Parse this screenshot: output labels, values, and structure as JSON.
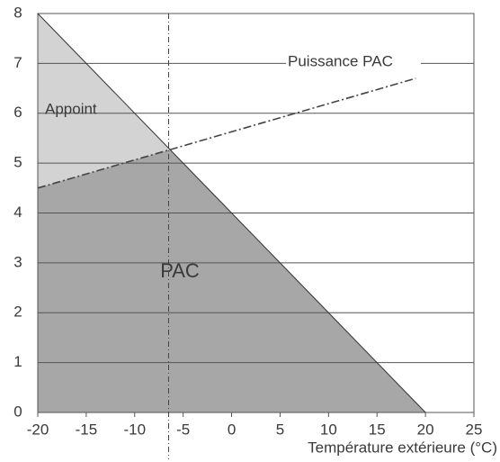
{
  "chart_data": {
    "type": "area",
    "xlabel": "Température extérieure (°C)",
    "series": [
      {
        "x": [
          -20,
          20
        ],
        "values": [
          8,
          0
        ],
        "color": "#333333"
      },
      {
        "name": "Puissance PAC",
        "x": [
          -20,
          19
        ],
        "values": [
          4.5,
          6.7
        ],
        "color": "#444444",
        "dash": "dashdot"
      }
    ],
    "vlines": [
      -6.5
    ],
    "annotations": [
      "Appoint",
      "PAC"
    ],
    "fill_colors": [
      "#d3d3d3",
      "#a7a7a7"
    ],
    "xlim": [
      -20,
      25
    ],
    "xticks": [
      -20,
      -15,
      -10,
      -5,
      0,
      5,
      10,
      15,
      20,
      25
    ],
    "ylim": [
      0,
      8
    ],
    "yticks": [
      0,
      1,
      2,
      3,
      4,
      5,
      6,
      7,
      8
    ],
    "grid": true
  }
}
